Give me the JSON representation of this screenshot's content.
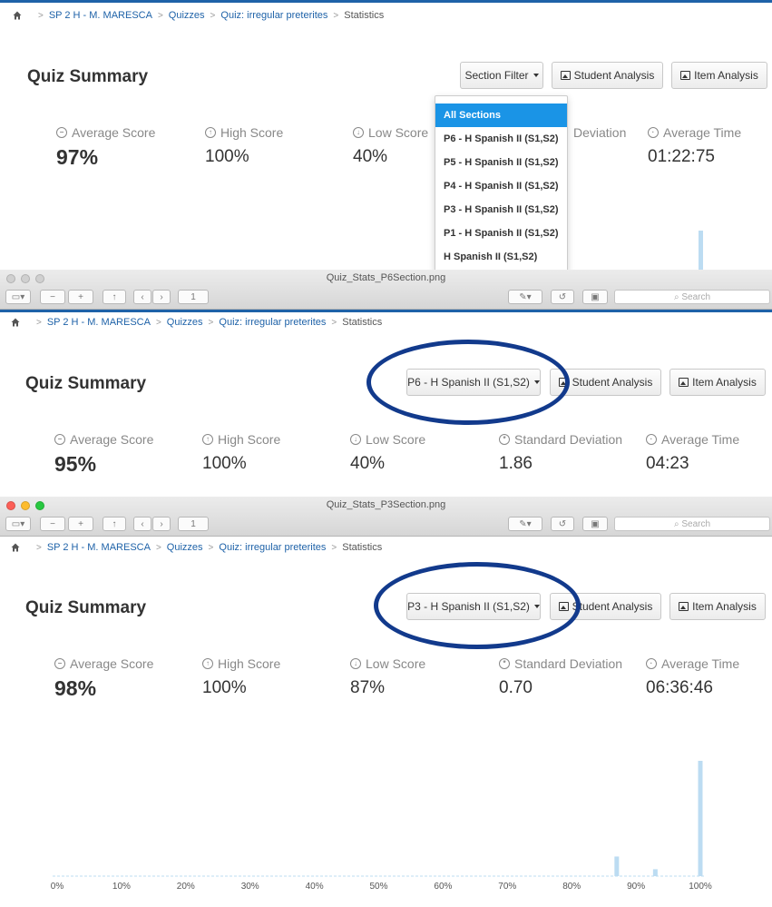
{
  "breadcrumb": {
    "course": "SP 2 H - M. MARESCA",
    "quizzes": "Quizzes",
    "quiz": "Quiz: irregular preterites",
    "current": "Statistics"
  },
  "summary_title": "Quiz Summary",
  "buttons": {
    "section_filter": "Section Filter",
    "student_analysis": "Student Analysis",
    "item_analysis": "Item Analysis"
  },
  "labels": {
    "average_score": "Average Score",
    "high_score": "High Score",
    "low_score": "Low Score",
    "std_dev": "Standard Deviation",
    "std_dev_partial": "Deviation",
    "average_time": "Average Time"
  },
  "panel1": {
    "average_score": "97%",
    "high_score": "100%",
    "low_score": "40%",
    "average_time": "01:22:75",
    "dropdown": [
      "All Sections",
      "P6 - H Spanish II (S1,S2)",
      "P5 - H Spanish II (S1,S2)",
      "P4 - H Spanish II (S1,S2)",
      "P3 - H Spanish II (S1,S2)",
      "P1 - H Spanish II (S1,S2)",
      "H Spanish II (S1,S2)"
    ]
  },
  "window1": {
    "filename": "Quiz_Stats_P6Section.png",
    "page": "1",
    "search_placeholder": "Search"
  },
  "panel2": {
    "selected_section": "P6 - H Spanish II (S1,S2)",
    "average_score": "95%",
    "high_score": "100%",
    "low_score": "40%",
    "std_dev": "1.86",
    "average_time": "04:23"
  },
  "window2": {
    "filename": "Quiz_Stats_P3Section.png",
    "page": "1",
    "search_placeholder": "Search"
  },
  "panel3": {
    "selected_section": "P3 - H Spanish II (S1,S2)",
    "average_score": "98%",
    "high_score": "100%",
    "low_score": "87%",
    "std_dev": "0.70",
    "average_time": "06:36:46"
  },
  "colors": {
    "link": "#1e62a8",
    "accent": "#1a94e6",
    "annotation_oval": "#123a8c",
    "bar": "#bcdcf2"
  },
  "chart_data": {
    "type": "bar",
    "x_ticks": [
      "0%",
      "10%",
      "20%",
      "30%",
      "40%",
      "50%",
      "60%",
      "70%",
      "80%",
      "90%",
      "100%"
    ],
    "xlim": [
      0,
      100
    ],
    "ylim": [
      0,
      100
    ],
    "bars": [
      {
        "x": 87,
        "value": 17
      },
      {
        "x": 93,
        "value": 6
      },
      {
        "x": 100,
        "value": 100
      }
    ],
    "grid": false,
    "legend": "none"
  }
}
